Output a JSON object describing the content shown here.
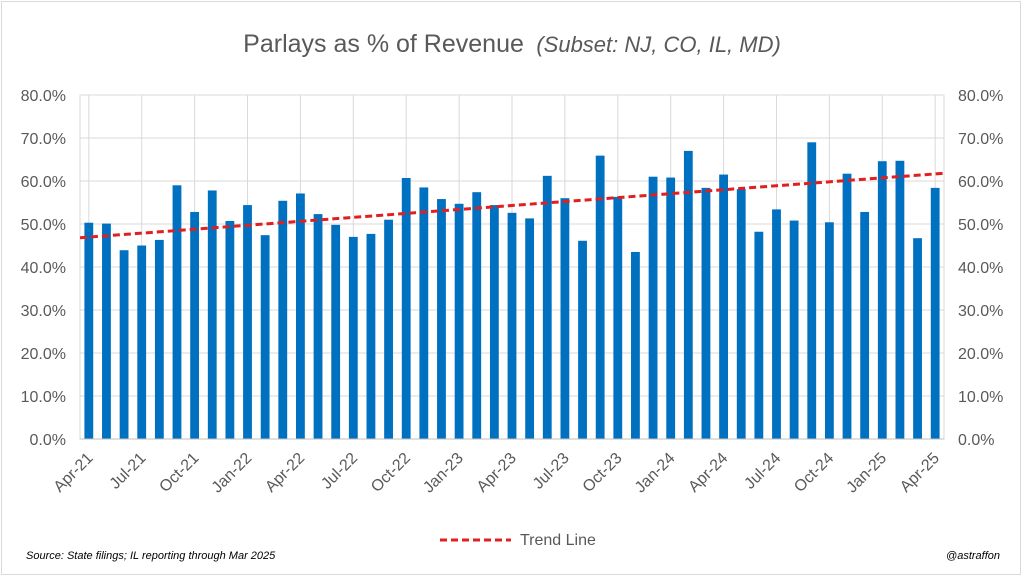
{
  "chart_data": {
    "type": "bar",
    "title": "Parlays as % of Revenue",
    "subtitle": "(Subset: NJ, CO, IL, MD)",
    "ylim": [
      0,
      80
    ],
    "yticks": [
      "0.0%",
      "10.0%",
      "20.0%",
      "30.0%",
      "40.0%",
      "50.0%",
      "60.0%",
      "70.0%",
      "80.0%"
    ],
    "grid": true,
    "legend_position": "bottom",
    "categories": [
      "Apr-21",
      "May-21",
      "Jun-21",
      "Jul-21",
      "Aug-21",
      "Sep-21",
      "Oct-21",
      "Nov-21",
      "Dec-21",
      "Jan-22",
      "Feb-22",
      "Mar-22",
      "Apr-22",
      "May-22",
      "Jun-22",
      "Jul-22",
      "Aug-22",
      "Sep-22",
      "Oct-22",
      "Nov-22",
      "Dec-22",
      "Jan-23",
      "Feb-23",
      "Mar-23",
      "Apr-23",
      "May-23",
      "Jun-23",
      "Jul-23",
      "Aug-23",
      "Sep-23",
      "Oct-23",
      "Nov-23",
      "Dec-23",
      "Jan-24",
      "Feb-24",
      "Mar-24",
      "Apr-24",
      "May-24",
      "Jun-24",
      "Jul-24",
      "Aug-24",
      "Sep-24",
      "Oct-24",
      "Nov-24",
      "Dec-24",
      "Jan-25",
      "Feb-25",
      "Mar-25",
      "Apr-25"
    ],
    "xtick_labels": [
      "Apr-21",
      "Jul-21",
      "Oct-21",
      "Jan-22",
      "Apr-22",
      "Jul-22",
      "Oct-22",
      "Jan-23",
      "Apr-23",
      "Jul-23",
      "Oct-23",
      "Jan-24",
      "Apr-24",
      "Jul-24",
      "Oct-24",
      "Jan-25",
      "Apr-25"
    ],
    "values": [
      50.3,
      50.1,
      43.9,
      45.0,
      46.3,
      59.0,
      52.8,
      57.8,
      50.7,
      54.4,
      47.4,
      55.4,
      57.1,
      52.3,
      49.8,
      47.0,
      47.7,
      51.0,
      60.7,
      58.5,
      55.8,
      54.7,
      57.4,
      54.4,
      52.6,
      51.3,
      61.2,
      56.0,
      46.1,
      65.9,
      56.3,
      43.5,
      61.0,
      60.8,
      67.0,
      58.4,
      61.5,
      58.1,
      48.2,
      53.4,
      50.8,
      69.0,
      50.4,
      61.7,
      52.8,
      64.6,
      64.7,
      46.7,
      58.4
    ],
    "bar_color": "#0070c0",
    "trend_line": {
      "name": "Trend Line",
      "start": 46.8,
      "end": 61.8,
      "color": "#e02020"
    }
  },
  "footer": {
    "source": "Source:  State filings; IL reporting through  Mar 2025",
    "handle": "@astraffon"
  }
}
